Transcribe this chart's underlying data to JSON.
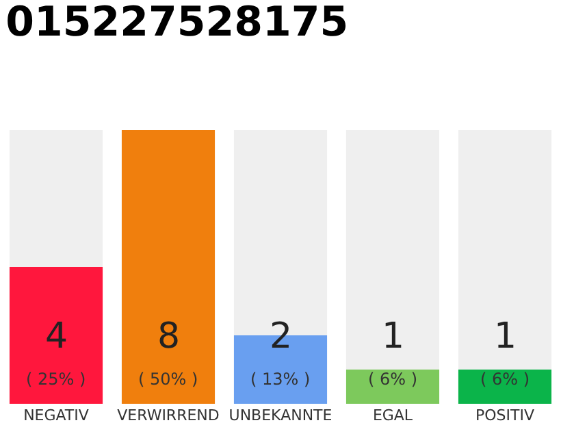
{
  "chart_data": {
    "type": "bar",
    "title": "015227528175",
    "ylim": [
      0,
      8
    ],
    "tick_labels": "x",
    "categories": [
      "NEGATIV",
      "VERWIRREND",
      "UNBEKANNTE",
      "EGAL",
      "POSITIV"
    ],
    "values": [
      4,
      8,
      2,
      1,
      1
    ],
    "colors": [
      "#ff173d",
      "#f07f0d",
      "#699ff0",
      "#7dc95c",
      "#0bb44a"
    ],
    "value_labels": [
      "4\n( 25% )",
      "8\n( 50% )",
      "2\n( 13% )",
      "1\n( 6% )",
      "1\n( 6% )"
    ],
    "grid": false,
    "legend": false
  }
}
